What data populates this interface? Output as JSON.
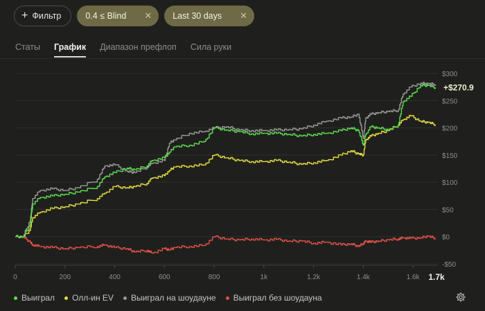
{
  "filters": {
    "add_filter_label": "Фильтр",
    "chips": [
      {
        "label": "0.4 ≤ Blind"
      },
      {
        "label": "Last 30 days"
      }
    ]
  },
  "tabs": [
    {
      "label": "Статы",
      "active": false
    },
    {
      "label": "График",
      "active": true
    },
    {
      "label": "Диапазон префлоп",
      "active": false
    },
    {
      "label": "Сила руки",
      "active": false
    }
  ],
  "chart_data": {
    "type": "line",
    "final_label": "+$270.9",
    "x_tick_labels": [
      "0",
      "200",
      "400",
      "600",
      "800",
      "1k",
      "1.2k",
      "1.4k",
      "1.6k"
    ],
    "x_end_label": "1.7k",
    "x_ticks": [
      0,
      200,
      400,
      600,
      800,
      1000,
      1200,
      1400,
      1600
    ],
    "x_end": 1700,
    "xlim": [
      0,
      1700
    ],
    "y_tick_labels": [
      "$300",
      "$250",
      "$200",
      "$150",
      "$100",
      "$50",
      "$0",
      "-$50"
    ],
    "y_ticks": [
      300,
      250,
      200,
      150,
      100,
      50,
      0,
      -50
    ],
    "ylim": [
      -50,
      300
    ],
    "grid": true,
    "series": [
      {
        "name": "Выиграл",
        "color": "#5fdc52",
        "x": [
          0,
          30,
          60,
          70,
          100,
          150,
          200,
          250,
          330,
          360,
          400,
          450,
          480,
          530,
          550,
          600,
          620,
          640,
          700,
          760,
          800,
          850,
          900,
          950,
          1000,
          1050,
          1100,
          1150,
          1200,
          1250,
          1310,
          1350,
          1380,
          1400,
          1410,
          1430,
          1460,
          1500,
          1540,
          1560,
          1590,
          1630,
          1660,
          1690
        ],
        "y": [
          0,
          0,
          22,
          60,
          72,
          75,
          78,
          82,
          92,
          110,
          118,
          126,
          123,
          130,
          140,
          145,
          155,
          165,
          168,
          175,
          200,
          196,
          193,
          189,
          190,
          190,
          188,
          185,
          188,
          190,
          195,
          200,
          195,
          168,
          188,
          202,
          200,
          196,
          205,
          248,
          258,
          278,
          278,
          274
        ]
      },
      {
        "name": "Олл-ин EV",
        "color": "#e5db43",
        "x": [
          0,
          30,
          60,
          70,
          100,
          150,
          200,
          250,
          330,
          360,
          400,
          450,
          480,
          530,
          550,
          600,
          620,
          640,
          700,
          760,
          800,
          850,
          900,
          950,
          1000,
          1050,
          1100,
          1150,
          1200,
          1250,
          1310,
          1350,
          1380,
          1400,
          1410,
          1430,
          1460,
          1500,
          1540,
          1560,
          1590,
          1630,
          1660,
          1690
        ],
        "y": [
          0,
          0,
          12,
          35,
          45,
          52,
          55,
          60,
          70,
          80,
          92,
          90,
          92,
          98,
          108,
          112,
          122,
          128,
          130,
          132,
          150,
          145,
          140,
          138,
          138,
          140,
          137,
          133,
          136,
          140,
          150,
          158,
          152,
          150,
          178,
          185,
          190,
          195,
          205,
          215,
          222,
          212,
          210,
          206
        ]
      },
      {
        "name": "Выиграл на шоудауне",
        "color": "#9a9b97",
        "x": [
          0,
          30,
          60,
          70,
          100,
          150,
          200,
          250,
          330,
          360,
          400,
          450,
          480,
          530,
          550,
          600,
          620,
          640,
          700,
          760,
          800,
          850,
          900,
          950,
          1000,
          1050,
          1100,
          1150,
          1200,
          1250,
          1310,
          1350,
          1380,
          1400,
          1410,
          1430,
          1460,
          1500,
          1540,
          1560,
          1590,
          1630,
          1660,
          1690
        ],
        "y": [
          0,
          0,
          30,
          70,
          85,
          88,
          85,
          90,
          105,
          130,
          132,
          120,
          118,
          128,
          135,
          140,
          172,
          178,
          190,
          193,
          200,
          202,
          196,
          195,
          195,
          196,
          197,
          198,
          205,
          212,
          218,
          220,
          225,
          180,
          218,
          225,
          228,
          230,
          232,
          262,
          275,
          282,
          281,
          280
        ]
      },
      {
        "name": "Выиграл без шоудауна",
        "color": "#e3504a",
        "x": [
          0,
          30,
          60,
          70,
          100,
          150,
          200,
          250,
          330,
          360,
          400,
          450,
          480,
          530,
          550,
          600,
          620,
          640,
          700,
          760,
          800,
          850,
          900,
          950,
          1000,
          1050,
          1100,
          1150,
          1200,
          1250,
          1310,
          1350,
          1380,
          1400,
          1410,
          1430,
          1460,
          1500,
          1540,
          1560,
          1590,
          1630,
          1660,
          1690
        ],
        "y": [
          0,
          0,
          -10,
          -15,
          -18,
          -20,
          -22,
          -20,
          -18,
          -15,
          -20,
          -22,
          -28,
          -25,
          -30,
          -22,
          -24,
          -20,
          -18,
          -16,
          0,
          -4,
          -6,
          -4,
          -6,
          -5,
          -8,
          -8,
          -12,
          -10,
          -15,
          -13,
          -18,
          -12,
          -8,
          -10,
          -8,
          -6,
          -4,
          -2,
          -3,
          -2,
          1,
          -3
        ]
      }
    ]
  },
  "legend": [
    {
      "label": "Выиграл",
      "color": "#5fdc52"
    },
    {
      "label": "Олл-ин EV",
      "color": "#e5db43"
    },
    {
      "label": "Выиграл на шоудауне",
      "color": "#9a9b97"
    },
    {
      "label": "Выиграл без шоудауна",
      "color": "#e3504a"
    }
  ],
  "icons": {
    "add_filter": "plus-icon",
    "remove_chip": "close-icon",
    "settings": "gear-icon"
  }
}
